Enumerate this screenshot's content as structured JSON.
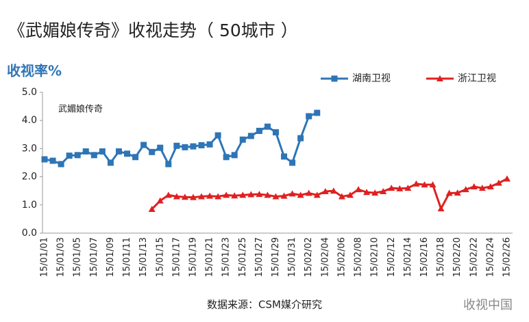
{
  "chart_data": {
    "type": "line",
    "title": "《武媚娘传奇》收视走势（ 50城市 ）",
    "y_label": "收视率%",
    "annotation": "武媚娘传奇",
    "source": "数据来源：CSM媒介研究",
    "watermark": "收视中国",
    "categories": [
      "15/01/01",
      null,
      "15/01/03",
      null,
      "15/01/05",
      null,
      "15/01/07",
      null,
      "15/01/09",
      null,
      "15/01/11",
      null,
      "15/01/13",
      null,
      "15/01/15",
      null,
      "15/01/17",
      null,
      "15/01/19",
      null,
      "15/01/21",
      null,
      "15/01/23",
      null,
      "15/01/25",
      null,
      "15/01/27",
      null,
      "15/01/29",
      null,
      "15/01/31",
      null,
      "15/02/02",
      null,
      "15/02/04",
      null,
      "15/02/06",
      null,
      "15/02/08",
      null,
      "15/02/10",
      null,
      "15/02/12",
      null,
      "15/02/14",
      null,
      "15/02/16",
      null,
      "15/02/18",
      null,
      "15/02/20",
      null,
      "15/02/22",
      null,
      "15/02/24",
      null,
      "15/02/26"
    ],
    "series": [
      {
        "name": "湖南卫视",
        "color": "#2e75b6",
        "marker": "square",
        "values": [
          2.62,
          2.57,
          2.45,
          2.75,
          2.77,
          2.9,
          2.77,
          2.9,
          2.5,
          2.9,
          2.82,
          2.7,
          3.13,
          2.88,
          3.03,
          2.45,
          3.1,
          3.05,
          3.08,
          3.12,
          3.15,
          3.47,
          2.7,
          2.77,
          3.32,
          3.45,
          3.63,
          3.78,
          3.58,
          2.72,
          2.5,
          3.37,
          4.15,
          4.27,
          null,
          null,
          null,
          null,
          null,
          null,
          null,
          null,
          null,
          null,
          null,
          null,
          null,
          null,
          null,
          null,
          null,
          null,
          null,
          null,
          null,
          null,
          null
        ]
      },
      {
        "name": "浙江卫视",
        "color": "#e02020",
        "marker": "triangle",
        "values": [
          null,
          null,
          null,
          null,
          null,
          null,
          null,
          null,
          null,
          null,
          null,
          null,
          null,
          0.85,
          1.15,
          1.35,
          1.3,
          1.28,
          1.27,
          1.3,
          1.32,
          1.3,
          1.35,
          1.33,
          1.35,
          1.37,
          1.38,
          1.35,
          1.3,
          1.32,
          1.4,
          1.35,
          1.42,
          1.35,
          1.48,
          1.5,
          1.3,
          1.35,
          1.55,
          1.45,
          1.43,
          1.48,
          1.6,
          1.58,
          1.6,
          1.75,
          1.72,
          1.72,
          0.87,
          1.42,
          1.43,
          1.55,
          1.65,
          1.6,
          1.65,
          1.78,
          1.93
        ]
      }
    ],
    "ylim": [
      0,
      5
    ],
    "yticks": [
      {
        "value": 0,
        "label": "0.0"
      },
      {
        "value": 1,
        "label": "1.0"
      },
      {
        "value": 2,
        "label": "2.0"
      },
      {
        "value": 3,
        "label": "3.0"
      },
      {
        "value": 4,
        "label": "4.0"
      },
      {
        "value": 5,
        "label": "5.0"
      }
    ],
    "grid": false
  }
}
